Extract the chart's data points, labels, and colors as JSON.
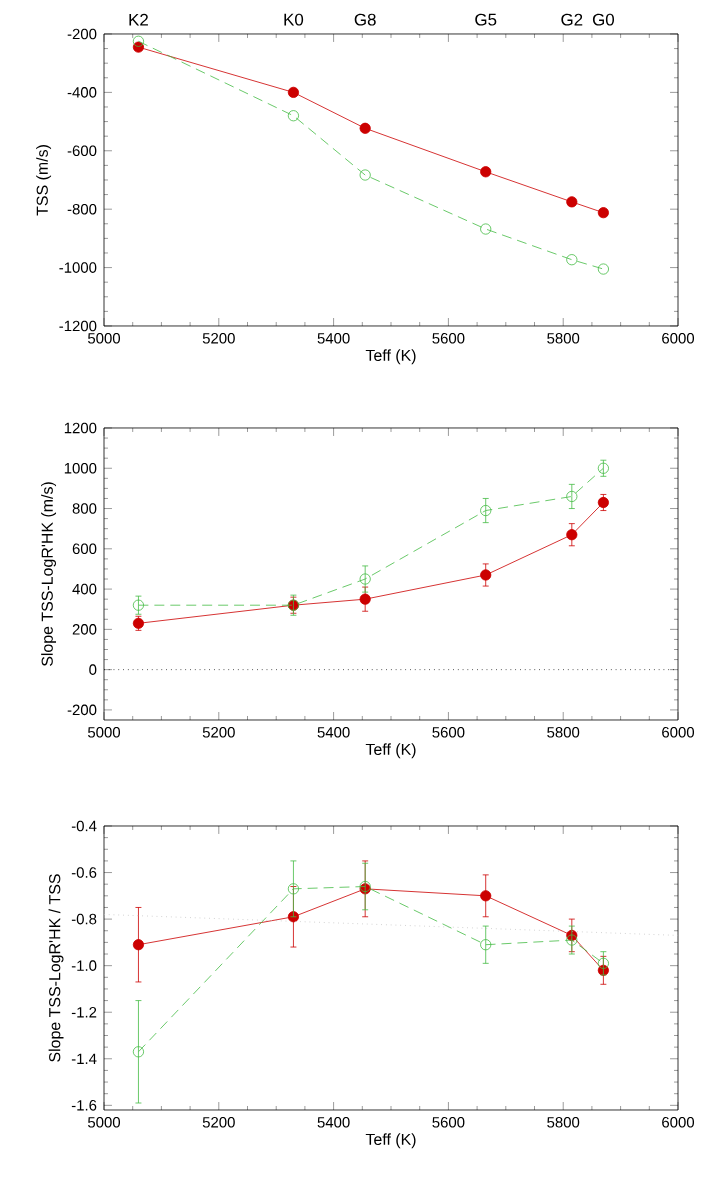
{
  "chart_data": [
    {
      "type": "line",
      "xlabel": "Teff (K)",
      "ylabel": "TSS (m/s)",
      "x": [
        5060,
        5330,
        5455,
        5665,
        5815,
        5870
      ],
      "xlim": [
        5000,
        6000
      ],
      "xticks": [
        5000,
        5200,
        5400,
        5600,
        5800,
        6000
      ],
      "ylim": [
        -1200,
        -200
      ],
      "yticks": [
        -1200,
        -1000,
        -800,
        -600,
        -400,
        -200
      ],
      "annotations": [
        "K2",
        "K0",
        "G8",
        "G5",
        "G2",
        "G0"
      ],
      "grid": false,
      "marker": "circle",
      "series": [
        {
          "color": "#cc0000",
          "line_style": "solid",
          "values": [
            -245,
            -400,
            -523,
            -672,
            -775,
            -812
          ]
        },
        {
          "color": "#44bb44",
          "line_style": "dashed",
          "values": [
            -225,
            -480,
            -683,
            -868,
            -973,
            -1005
          ]
        }
      ]
    },
    {
      "type": "line",
      "xlabel": "Teff (K)",
      "ylabel": "Slope TSS-LogR'HK (m/s)",
      "x": [
        5060,
        5330,
        5455,
        5665,
        5815,
        5870
      ],
      "xlim": [
        5000,
        6000
      ],
      "xticks": [
        5000,
        5200,
        5400,
        5600,
        5800,
        6000
      ],
      "ylim": [
        -250,
        1200
      ],
      "yticks": [
        -200,
        0,
        200,
        400,
        600,
        800,
        1000,
        1200
      ],
      "grid": false,
      "marker": "circle",
      "ref_lines": [
        {
          "axis": "y",
          "value": 0,
          "color": "#000000",
          "line_style": "dotted"
        }
      ],
      "series": [
        {
          "color": "#cc0000",
          "line_style": "solid",
          "values": [
            230,
            320,
            350,
            470,
            670,
            830
          ],
          "errors": [
            35,
            40,
            60,
            55,
            55,
            40
          ]
        },
        {
          "color": "#44bb44",
          "line_style": "dashed",
          "values": [
            320,
            320,
            450,
            790,
            860,
            1000
          ],
          "errors": [
            45,
            50,
            65,
            60,
            60,
            40
          ]
        }
      ]
    },
    {
      "type": "line",
      "xlabel": "Teff (K)",
      "ylabel": "Slope TSS-LogR'HK / TSS",
      "x": [
        5060,
        5330,
        5455,
        5665,
        5815,
        5870
      ],
      "xlim": [
        5000,
        6000
      ],
      "xticks": [
        5000,
        5200,
        5400,
        5600,
        5800,
        6000
      ],
      "ylim": [
        -1.62,
        -0.4
      ],
      "yticks": [
        -1.6,
        -1.4,
        -1.2,
        {
          "value": -1,
          "label": "-1.0"
        },
        -0.8,
        -0.6,
        -0.4
      ],
      "grid": false,
      "marker": "circle",
      "series": [
        {
          "color": "#cc0000",
          "line_style": "solid",
          "values": [
            -0.91,
            -0.79,
            -0.67,
            -0.7,
            -0.87,
            -1.02
          ],
          "errors": [
            0.16,
            0.13,
            0.12,
            0.09,
            0.07,
            0.06
          ]
        },
        {
          "color": "#44bb44",
          "line_style": "dashed",
          "values": [
            -1.37,
            -0.67,
            -0.66,
            -0.91,
            -0.89,
            -0.99
          ],
          "errors": [
            0.22,
            0.12,
            0.1,
            0.08,
            0.06,
            0.05
          ]
        },
        {
          "type": "line",
          "color": "#bbbbbb",
          "line_style": "dotted",
          "marker": "none",
          "x": [
            5000,
            6000
          ],
          "values": [
            -0.78,
            -0.87
          ]
        }
      ]
    }
  ]
}
